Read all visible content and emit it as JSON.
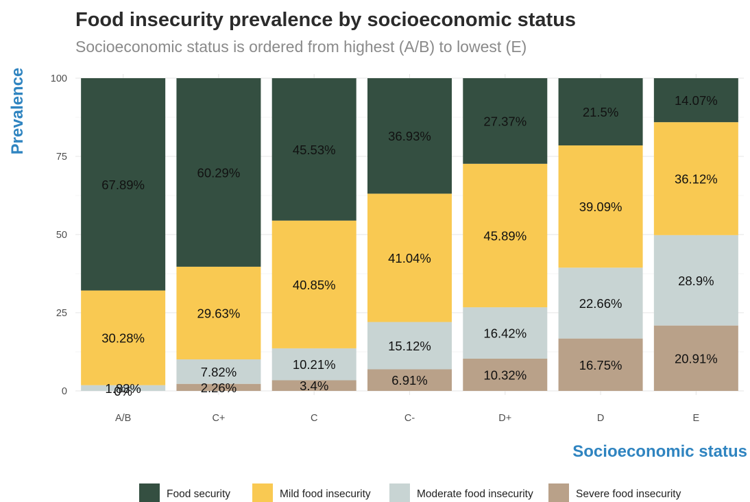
{
  "chart_data": {
    "type": "bar",
    "stacked": true,
    "title": "Food insecurity prevalence by socioeconomic status",
    "subtitle": "Socioeconomic status is ordered from highest (A/B) to lowest (E)",
    "xlabel": "Socioeconomic status",
    "ylabel": "Prevalence",
    "ylim": [
      0,
      100
    ],
    "yticks": [
      0,
      25,
      50,
      75,
      100
    ],
    "grid": true,
    "legend_position": "bottom",
    "categories": [
      "A/B",
      "C+",
      "C",
      "C-",
      "D+",
      "D",
      "E"
    ],
    "series": [
      {
        "name": "Severe food insecurity",
        "color": "#b9a189",
        "values": [
          0,
          2.26,
          3.4,
          6.91,
          10.32,
          16.75,
          20.91
        ],
        "labels": [
          "0%",
          "2.26%",
          "3.4%",
          "6.91%",
          "10.32%",
          "16.75%",
          "20.91%"
        ]
      },
      {
        "name": "Moderate food insecurity",
        "color": "#c8d4d3",
        "values": [
          1.83,
          7.82,
          10.21,
          15.12,
          16.42,
          22.66,
          28.9
        ],
        "labels": [
          "1.83%",
          "7.82%",
          "10.21%",
          "15.12%",
          "16.42%",
          "22.66%",
          "28.9%"
        ]
      },
      {
        "name": "Mild food insecurity",
        "color": "#f9c952",
        "values": [
          30.28,
          29.63,
          40.85,
          41.04,
          45.89,
          39.09,
          36.12
        ],
        "labels": [
          "30.28%",
          "29.63%",
          "40.85%",
          "41.04%",
          "45.89%",
          "39.09%",
          "36.12%"
        ]
      },
      {
        "name": "Food security",
        "color": "#344f41",
        "values": [
          67.89,
          60.29,
          45.53,
          36.93,
          27.37,
          21.5,
          14.07
        ],
        "labels": [
          "67.89%",
          "60.29%",
          "45.53%",
          "36.93%",
          "27.37%",
          "21.5%",
          "14.07%"
        ]
      }
    ],
    "legend_order": [
      "Food security",
      "Mild food insecurity",
      "Moderate food insecurity",
      "Severe food insecurity"
    ]
  }
}
